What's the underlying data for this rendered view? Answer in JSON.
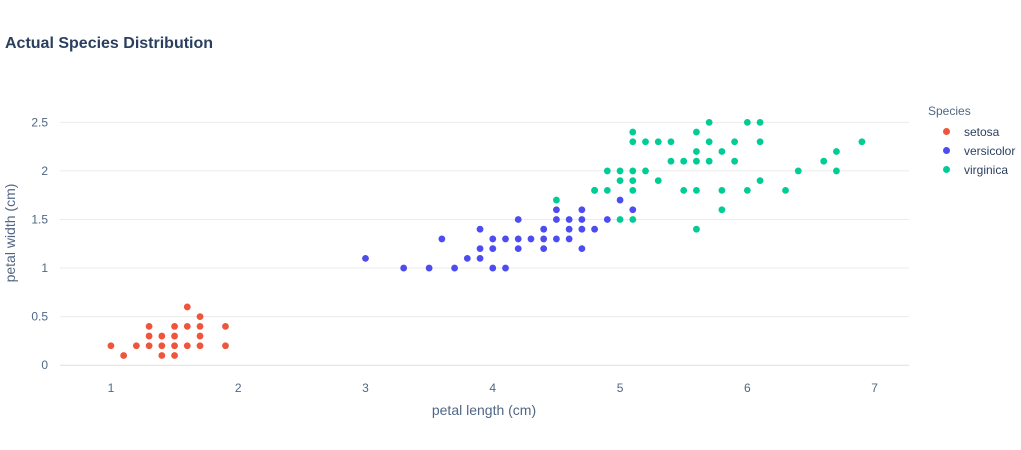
{
  "chart_data": {
    "type": "scatter",
    "title": "Actual Species Distribution",
    "xlabel": "petal length (cm)",
    "ylabel": "petal width (cm)",
    "xlim": [
      0.6,
      7.27
    ],
    "ylim": [
      -0.07,
      2.73
    ],
    "xticks": [
      "1",
      "2",
      "3",
      "4",
      "5",
      "6",
      "7"
    ],
    "yticks": [
      "0",
      "0.5",
      "1",
      "1.5",
      "2",
      "2.5"
    ],
    "grid": true,
    "legend_title": "Species",
    "legend_position": "right",
    "series": [
      {
        "name": "setosa",
        "color": "#ef553b",
        "points": [
          [
            1.0,
            0.2
          ],
          [
            1.1,
            0.1
          ],
          [
            1.2,
            0.2
          ],
          [
            1.3,
            0.2
          ],
          [
            1.3,
            0.3
          ],
          [
            1.3,
            0.4
          ],
          [
            1.4,
            0.1
          ],
          [
            1.4,
            0.2
          ],
          [
            1.4,
            0.3
          ],
          [
            1.5,
            0.1
          ],
          [
            1.5,
            0.2
          ],
          [
            1.5,
            0.3
          ],
          [
            1.5,
            0.4
          ],
          [
            1.6,
            0.2
          ],
          [
            1.6,
            0.4
          ],
          [
            1.6,
            0.6
          ],
          [
            1.7,
            0.2
          ],
          [
            1.7,
            0.3
          ],
          [
            1.7,
            0.4
          ],
          [
            1.7,
            0.5
          ],
          [
            1.9,
            0.2
          ],
          [
            1.9,
            0.4
          ]
        ]
      },
      {
        "name": "versicolor",
        "color": "#4c4cf0",
        "points": [
          [
            3.0,
            1.1
          ],
          [
            3.3,
            1.0
          ],
          [
            3.5,
            1.0
          ],
          [
            3.6,
            1.3
          ],
          [
            3.7,
            1.0
          ],
          [
            3.8,
            1.1
          ],
          [
            3.9,
            1.1
          ],
          [
            3.9,
            1.2
          ],
          [
            3.9,
            1.4
          ],
          [
            4.0,
            1.0
          ],
          [
            4.0,
            1.2
          ],
          [
            4.0,
            1.3
          ],
          [
            4.1,
            1.0
          ],
          [
            4.1,
            1.3
          ],
          [
            4.2,
            1.2
          ],
          [
            4.2,
            1.3
          ],
          [
            4.2,
            1.5
          ],
          [
            4.3,
            1.3
          ],
          [
            4.4,
            1.2
          ],
          [
            4.4,
            1.3
          ],
          [
            4.4,
            1.4
          ],
          [
            4.5,
            1.3
          ],
          [
            4.5,
            1.5
          ],
          [
            4.5,
            1.6
          ],
          [
            4.6,
            1.3
          ],
          [
            4.6,
            1.4
          ],
          [
            4.6,
            1.5
          ],
          [
            4.7,
            1.2
          ],
          [
            4.7,
            1.4
          ],
          [
            4.7,
            1.5
          ],
          [
            4.7,
            1.6
          ],
          [
            4.8,
            1.4
          ],
          [
            4.8,
            1.8
          ],
          [
            4.9,
            1.5
          ],
          [
            5.0,
            1.7
          ],
          [
            5.1,
            1.6
          ]
        ]
      },
      {
        "name": "virginica",
        "color": "#00cc96",
        "points": [
          [
            4.5,
            1.7
          ],
          [
            4.8,
            1.8
          ],
          [
            4.9,
            1.8
          ],
          [
            4.9,
            2.0
          ],
          [
            5.0,
            1.5
          ],
          [
            5.0,
            1.9
          ],
          [
            5.0,
            2.0
          ],
          [
            5.1,
            1.5
          ],
          [
            5.1,
            1.8
          ],
          [
            5.1,
            1.9
          ],
          [
            5.1,
            2.0
          ],
          [
            5.1,
            2.3
          ],
          [
            5.1,
            2.4
          ],
          [
            5.2,
            2.0
          ],
          [
            5.2,
            2.3
          ],
          [
            5.3,
            1.9
          ],
          [
            5.3,
            2.3
          ],
          [
            5.4,
            2.1
          ],
          [
            5.4,
            2.3
          ],
          [
            5.5,
            1.8
          ],
          [
            5.5,
            2.1
          ],
          [
            5.6,
            1.4
          ],
          [
            5.6,
            1.8
          ],
          [
            5.6,
            2.1
          ],
          [
            5.6,
            2.2
          ],
          [
            5.6,
            2.4
          ],
          [
            5.7,
            2.1
          ],
          [
            5.7,
            2.3
          ],
          [
            5.7,
            2.5
          ],
          [
            5.8,
            1.6
          ],
          [
            5.8,
            1.8
          ],
          [
            5.8,
            2.2
          ],
          [
            5.9,
            2.1
          ],
          [
            5.9,
            2.3
          ],
          [
            6.0,
            1.8
          ],
          [
            6.0,
            2.5
          ],
          [
            6.1,
            1.9
          ],
          [
            6.1,
            2.3
          ],
          [
            6.1,
            2.5
          ],
          [
            6.3,
            1.8
          ],
          [
            6.4,
            2.0
          ],
          [
            6.6,
            2.1
          ],
          [
            6.7,
            2.0
          ],
          [
            6.7,
            2.2
          ],
          [
            6.9,
            2.3
          ]
        ]
      }
    ]
  }
}
